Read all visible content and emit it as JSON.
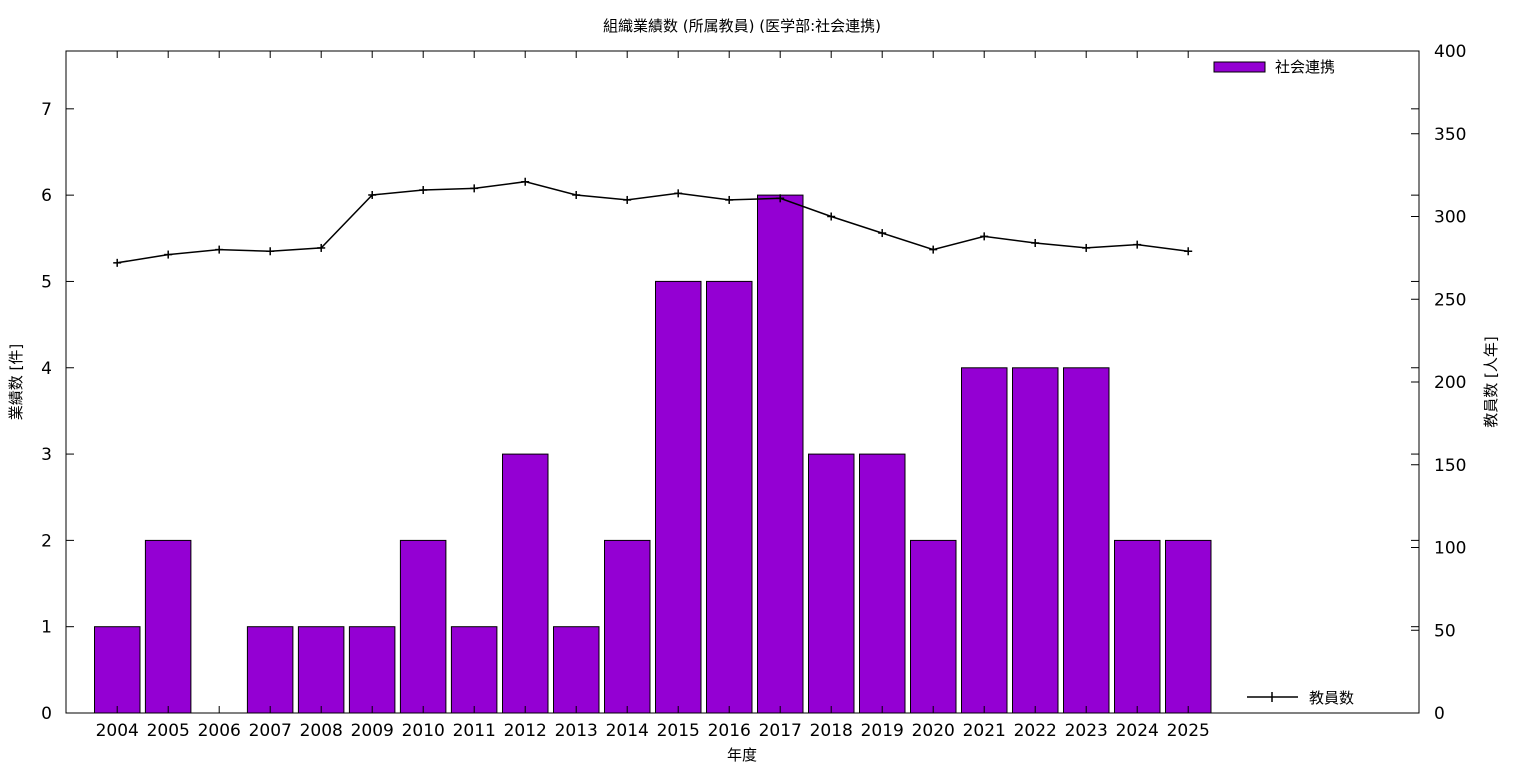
{
  "chart_data": {
    "type": "bar",
    "title": "組織業績数 (所属教員) (医学部:社会連携)",
    "xlabel": "年度",
    "ylabel": "業績数 [件]",
    "y2label": "教員数 [人年]",
    "categories": [
      "2004",
      "2005",
      "2006",
      "2007",
      "2008",
      "2009",
      "2010",
      "2011",
      "2012",
      "2013",
      "2014",
      "2015",
      "2016",
      "2017",
      "2018",
      "2019",
      "2020",
      "2021",
      "2022",
      "2023",
      "2024",
      "2025"
    ],
    "series": [
      {
        "name": "社会連携",
        "type": "bar",
        "axis": "left",
        "color": "#9400d3",
        "values": [
          1,
          2,
          0,
          1,
          1,
          1,
          2,
          1,
          3,
          1,
          2,
          5,
          5,
          6,
          3,
          3,
          2,
          4,
          4,
          4,
          2,
          2
        ]
      },
      {
        "name": "教員数",
        "type": "line",
        "axis": "right",
        "color": "#000000",
        "values": [
          272,
          277,
          280,
          279,
          281,
          313,
          316,
          317,
          321,
          313,
          310,
          314,
          310,
          311,
          300,
          290,
          280,
          288,
          284,
          281,
          283,
          279
        ]
      }
    ],
    "ylim": [
      0,
      7.67
    ],
    "yticks": [
      "0",
      "1",
      "2",
      "3",
      "4",
      "5",
      "6",
      "7"
    ],
    "y2lim": [
      0,
      400
    ],
    "y2ticks": [
      "0",
      "50",
      "100",
      "150",
      "200",
      "250",
      "300",
      "350",
      "400"
    ],
    "grid": false,
    "legend": [
      "top-right",
      "bottom-right"
    ]
  }
}
